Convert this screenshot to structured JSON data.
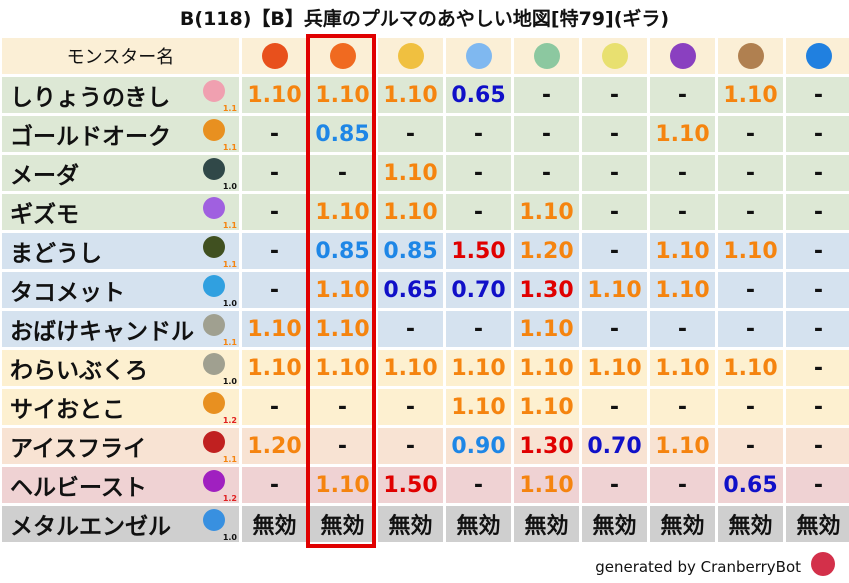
{
  "title": "B(118)【B】兵庫のプルマのあやしい地図[特79](ギラ)",
  "header": {
    "name_label": "モンスター名",
    "elements": [
      {
        "icon": "fireball-icon",
        "color": "#e8501c"
      },
      {
        "icon": "flame-icon",
        "color": "#f06a20"
      },
      {
        "icon": "explosion-icon",
        "color": "#f0c040"
      },
      {
        "icon": "ice-crystal-icon",
        "color": "#7fb8f0"
      },
      {
        "icon": "tornado-icon",
        "color": "#8cc8a0"
      },
      {
        "icon": "lightning-icon",
        "color": "#e8e070"
      },
      {
        "icon": "dark-vortex-icon",
        "color": "#8a40c0"
      },
      {
        "icon": "rock-icon",
        "color": "#b08050"
      },
      {
        "icon": "water-wave-icon",
        "color": "#2080e0"
      }
    ]
  },
  "highlighted_column": 2,
  "row_colors": {
    "green": "#dde8d5",
    "blue": "#d5e2ef",
    "yellow": "#fdf0d0",
    "peach": "#f8e3d3",
    "pink": "#efd2d3",
    "gray": "#cfcfcf",
    "header": "#fbefd6"
  },
  "value_colors": {
    "weak": "#f5840f",
    "strong_weak": "#e00000",
    "resist": "#1e86e6",
    "strong_resist": "#1010c8",
    "neutral": "#111111"
  },
  "rows": [
    {
      "name": "しりょうのきし",
      "icon": "skull-icon",
      "icon_color": "#f0a0b0",
      "level": "1.1",
      "bg": "green",
      "values": [
        "1.10",
        "1.10",
        "1.10",
        "0.65",
        "-",
        "-",
        "-",
        "1.10",
        "-"
      ]
    },
    {
      "name": "ゴールドオーク",
      "icon": "paw-icon",
      "icon_color": "#e89020",
      "level": "1.1",
      "bg": "green",
      "values": [
        "-",
        "0.85",
        "-",
        "-",
        "-",
        "-",
        "1.10",
        "-",
        "-"
      ]
    },
    {
      "name": "メーダ",
      "icon": "bug-icon",
      "icon_color": "#304848",
      "level": "1.0",
      "bg": "green",
      "values": [
        "-",
        "-",
        "1.10",
        "-",
        "-",
        "-",
        "-",
        "-",
        "-"
      ]
    },
    {
      "name": "ギズモ",
      "icon": "gas-icon",
      "icon_color": "#a060e0",
      "level": "1.1",
      "bg": "green",
      "values": [
        "-",
        "1.10",
        "1.10",
        "-",
        "1.10",
        "-",
        "-",
        "-",
        "-"
      ]
    },
    {
      "name": "まどうし",
      "icon": "hooded-icon",
      "icon_color": "#405020",
      "level": "1.1",
      "bg": "blue",
      "values": [
        "-",
        "0.85",
        "0.85",
        "1.50",
        "1.20",
        "-",
        "1.10",
        "1.10",
        "-"
      ]
    },
    {
      "name": "タコメット",
      "icon": "drop-icon",
      "icon_color": "#30a0e0",
      "level": "1.0",
      "bg": "blue",
      "values": [
        "-",
        "1.10",
        "0.65",
        "0.70",
        "1.30",
        "1.10",
        "1.10",
        "-",
        "-"
      ]
    },
    {
      "name": "おばけキャンドル",
      "icon": "wall-icon",
      "icon_color": "#a0a090",
      "level": "1.1",
      "bg": "blue",
      "values": [
        "1.10",
        "1.10",
        "-",
        "-",
        "1.10",
        "-",
        "-",
        "-",
        "-"
      ]
    },
    {
      "name": "わらいぶくろ",
      "icon": "wall-icon",
      "icon_color": "#a0a090",
      "level": "1.0",
      "bg": "yellow",
      "values": [
        "1.10",
        "1.10",
        "1.10",
        "1.10",
        "1.10",
        "1.10",
        "1.10",
        "1.10",
        "-"
      ]
    },
    {
      "name": "サイおとこ",
      "icon": "paw-icon",
      "icon_color": "#e89020",
      "level": "1.2",
      "bg": "yellow",
      "values": [
        "-",
        "-",
        "-",
        "1.10",
        "1.10",
        "-",
        "-",
        "-",
        "-"
      ]
    },
    {
      "name": "アイスフライ",
      "icon": "dragon-icon",
      "icon_color": "#c02020",
      "level": "1.1",
      "bg": "peach",
      "values": [
        "1.20",
        "-",
        "-",
        "0.90",
        "1.30",
        "0.70",
        "1.10",
        "-",
        "-"
      ]
    },
    {
      "name": "ヘルビースト",
      "icon": "trident-icon",
      "icon_color": "#a020c0",
      "level": "1.2",
      "bg": "pink",
      "values": [
        "-",
        "1.10",
        "1.50",
        "-",
        "1.10",
        "-",
        "-",
        "0.65",
        "-"
      ]
    },
    {
      "name": "メタルエンゼル",
      "icon": "slime-icon",
      "icon_color": "#3890e0",
      "level": "1.0",
      "bg": "gray",
      "values": [
        "無効",
        "無効",
        "無効",
        "無効",
        "無効",
        "無効",
        "無効",
        "無効",
        "無効"
      ]
    }
  ],
  "footer": "generated by CranberryBot"
}
